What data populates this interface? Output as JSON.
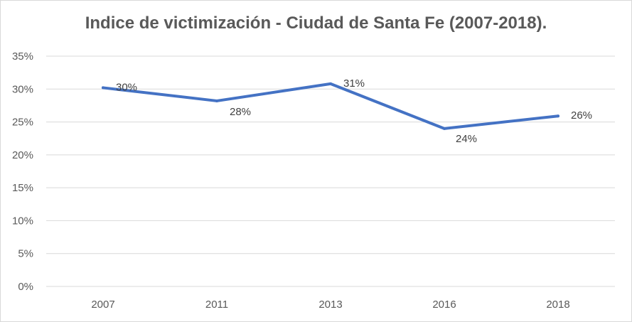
{
  "chart_data": {
    "type": "line",
    "title": "Indice de victimización - Ciudad de Santa Fe (2007-2018).",
    "xlabel": "",
    "ylabel": "",
    "categories": [
      "2007",
      "2011",
      "2013",
      "2016",
      "2018"
    ],
    "series": [
      {
        "values": [
          0.302,
          0.282,
          0.308,
          0.24,
          0.259
        ],
        "data_labels": [
          "30%",
          "28%",
          "31%",
          "24%",
          "26%"
        ],
        "color": "#4472c4"
      }
    ],
    "ylim": [
      0,
      0.35
    ],
    "y_ticks": [
      "0%",
      "5%",
      "10%",
      "15%",
      "20%",
      "25%",
      "30%",
      "35%"
    ],
    "grid": true,
    "legend": "none",
    "gridline_color": "#d9d9d9"
  }
}
